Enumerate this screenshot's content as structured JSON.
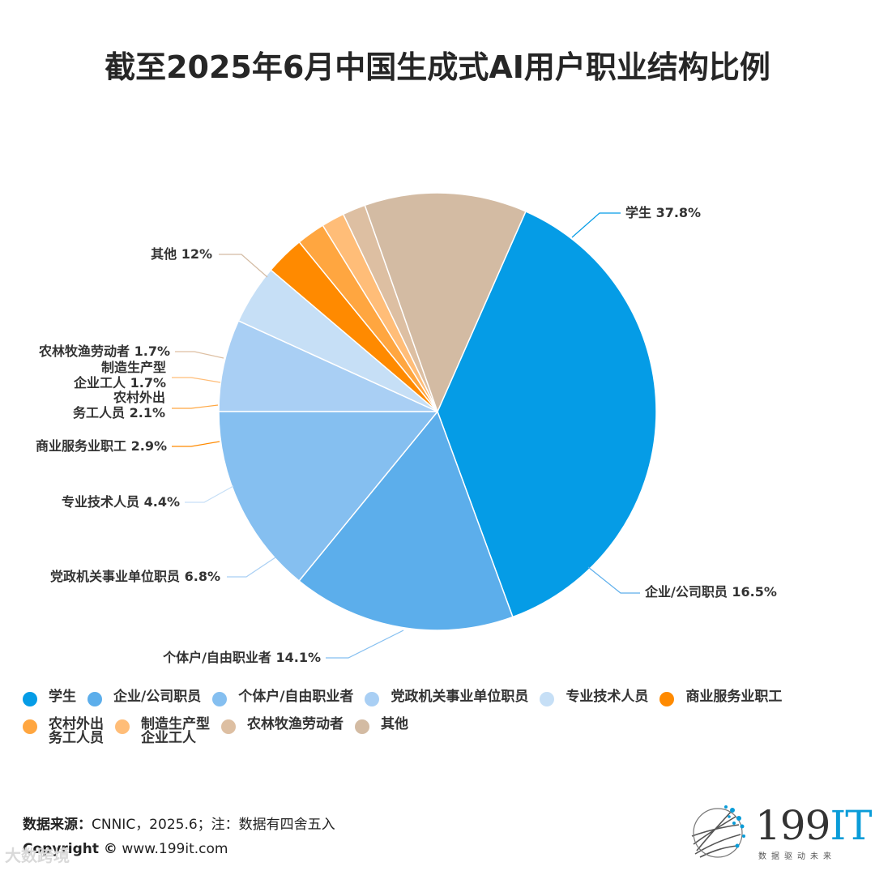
{
  "title": "截至2025年6月中国生成式AI用户职业结构比例",
  "chart_data": {
    "type": "pie",
    "title": "截至2025年6月中国生成式AI用户职业结构比例",
    "slices": [
      {
        "name": "学生",
        "value": 37.8,
        "label": "学生 37.8%",
        "color": "#059CE6"
      },
      {
        "name": "企业/公司职员",
        "value": 16.5,
        "label": "企业/公司职员 16.5%",
        "color": "#5CAEEB"
      },
      {
        "name": "个体户/自由职业者",
        "value": 14.1,
        "label": "个体户/自由职业者 14.1%",
        "color": "#85BFF0"
      },
      {
        "name": "党政机关事业单位职员",
        "value": 6.8,
        "label": "党政机关事业单位职员 6.8%",
        "color": "#A9CFF4"
      },
      {
        "name": "专业技术人员",
        "value": 4.4,
        "label": "专业技术人员 4.4%",
        "color": "#C6DFF6"
      },
      {
        "name": "商业服务业职工",
        "value": 2.9,
        "label": "商业服务业职工 2.9%",
        "color": "#FF8A00"
      },
      {
        "name": "农村外出务工人员",
        "value": 2.1,
        "label_lines": [
          "农村外出",
          "务工人员 2.1%"
        ],
        "color": "#FFA640"
      },
      {
        "name": "制造生产型企业工人",
        "value": 1.7,
        "label_lines": [
          "制造生产型",
          "企业工人 1.7%"
        ],
        "color": "#FFBD78"
      },
      {
        "name": "农林牧渔劳动者",
        "value": 1.7,
        "label": "农林牧渔劳动者 1.7%",
        "color": "#DDBFA2"
      },
      {
        "name": "其他",
        "value": 12,
        "label": "其他 12%",
        "color": "#D3BBA3"
      }
    ],
    "legend_placement": "bottom"
  },
  "legend": [
    {
      "lines": [
        "学生"
      ],
      "color": "#059CE6"
    },
    {
      "lines": [
        "企业/公司职员"
      ],
      "color": "#5CAEEB"
    },
    {
      "lines": [
        "个体户/自由职业者"
      ],
      "color": "#85BFF0"
    },
    {
      "lines": [
        "党政机关事业单位职员"
      ],
      "color": "#A9CFF4"
    },
    {
      "lines": [
        "专业技术人员"
      ],
      "color": "#C6DFF6"
    },
    {
      "lines": [
        "商业服务业职工"
      ],
      "color": "#FF8A00"
    },
    {
      "lines": [
        "农村外出",
        "务工人员"
      ],
      "color": "#FFA640"
    },
    {
      "lines": [
        "制造生产型",
        "企业工人"
      ],
      "color": "#FFBD78"
    },
    {
      "lines": [
        "农林牧渔劳动者"
      ],
      "color": "#DDBFA2"
    },
    {
      "lines": [
        "其他"
      ],
      "color": "#D3BBA3"
    }
  ],
  "footer": {
    "source_label": "数据来源：",
    "source_text": "CNNIC，2025.6；注：数据有四舍五入",
    "copyright_label": "Copyright ©",
    "copyright_url": "www.199it.com"
  },
  "logo": {
    "num": "199",
    "it": "IT",
    "sub": "数据驱动未来"
  },
  "watermark": "大数跨境"
}
